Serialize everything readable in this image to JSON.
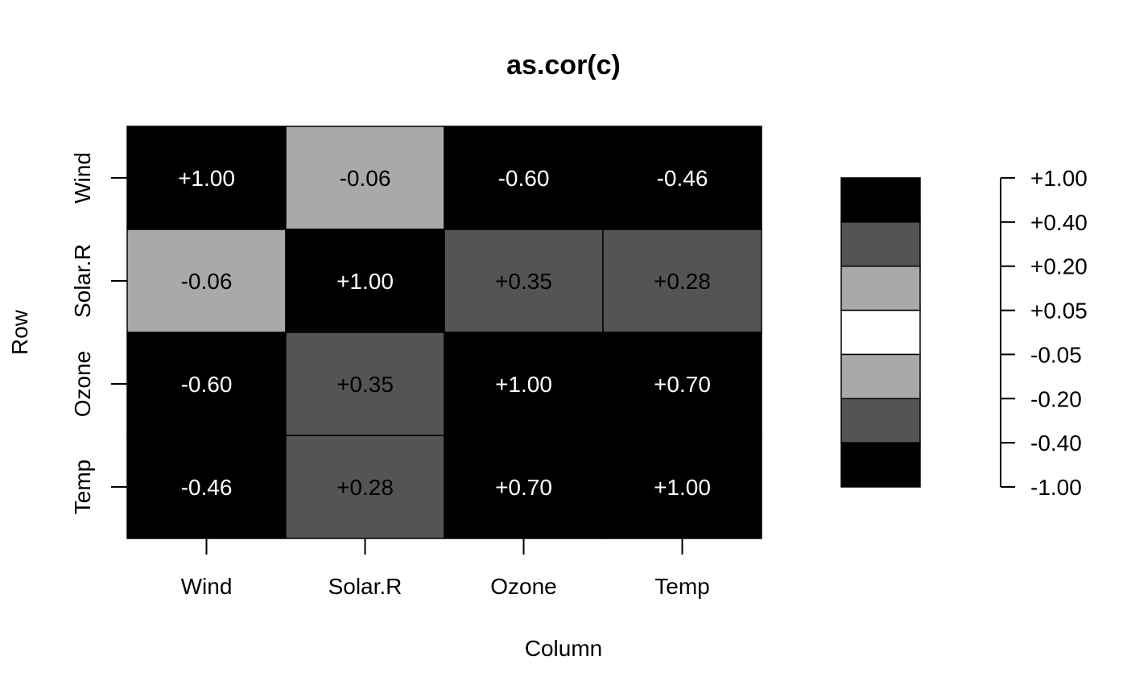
{
  "chart_data": {
    "type": "heatmap",
    "title": "as.cor(c)",
    "xlabel": "Column",
    "ylabel": "Row",
    "columns": [
      "Wind",
      "Solar.R",
      "Ozone",
      "Temp"
    ],
    "rows": [
      "Wind",
      "Solar.R",
      "Ozone",
      "Temp"
    ],
    "values": [
      [
        1.0,
        -0.06,
        -0.6,
        -0.46
      ],
      [
        -0.06,
        1.0,
        0.35,
        0.28
      ],
      [
        -0.6,
        0.35,
        1.0,
        0.7
      ],
      [
        -0.46,
        0.28,
        0.7,
        1.0
      ]
    ],
    "cell_labels": [
      [
        "+1.00",
        "-0.06",
        "-0.60",
        "-0.46"
      ],
      [
        "-0.06",
        "+1.00",
        "+0.35",
        "+0.28"
      ],
      [
        "-0.60",
        "+0.35",
        "+1.00",
        "+0.70"
      ],
      [
        "-0.46",
        "+0.28",
        "+0.70",
        "+1.00"
      ]
    ],
    "breaks": [
      -1.0,
      -0.4,
      -0.2,
      -0.05,
      0.05,
      0.2,
      0.4,
      1.0
    ],
    "break_labels": [
      "+1.00",
      "+0.40",
      "+0.20",
      "+0.05",
      "-0.05",
      "-0.20",
      "-0.40",
      "-1.00"
    ],
    "bin_colors": [
      "#000000",
      "#545454",
      "#a9a9a9",
      "#ffffff",
      "#a9a9a9",
      "#545454",
      "#000000"
    ],
    "grid": false
  }
}
